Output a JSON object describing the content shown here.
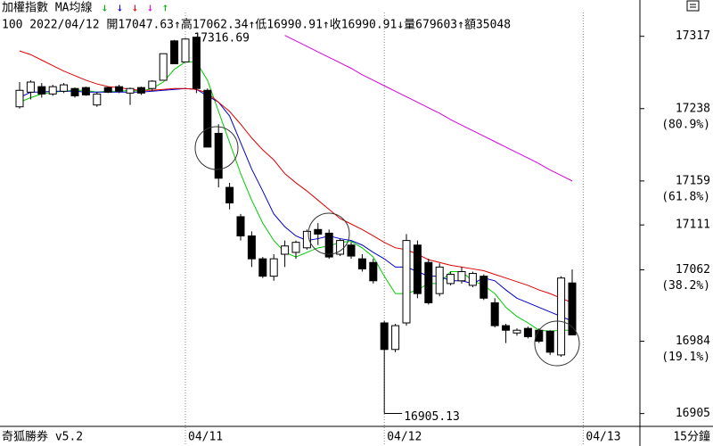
{
  "chart_data": {
    "type": "candlestick",
    "title": "加權指數 MA均線",
    "arrows": [
      {
        "text": "↓",
        "color": "#00b000"
      },
      {
        "text": "↓",
        "color": "#0000d0"
      },
      {
        "text": "↓",
        "color": "#e00000"
      },
      {
        "text": "↓",
        "color": "#e000e0"
      },
      {
        "text": "↑",
        "color": "#00b000"
      }
    ],
    "info": "100 2022/04/12 開17047.63↑高17062.34↑低16990.91↑收16990.91↓量679603↑額35048",
    "categories": [
      null,
      null,
      null,
      null,
      null,
      null,
      null,
      null,
      null,
      null,
      null,
      null,
      null,
      null,
      null,
      "04/11",
      null,
      null,
      null,
      null,
      null,
      null,
      null,
      null,
      null,
      null,
      null,
      null,
      null,
      null,
      null,
      null,
      null,
      "04/12",
      null,
      null,
      null,
      null,
      null,
      null,
      null,
      null,
      null,
      null,
      null,
      null,
      null,
      null,
      null,
      null,
      null,
      "04/13"
    ],
    "open": [
      17240,
      17256,
      17262,
      17254,
      17257,
      17260,
      17261,
      17242,
      17261,
      17262,
      17255,
      17261,
      17260,
      17269,
      17312,
      17289,
      17316,
      17258,
      17211,
      17152,
      17120,
      17099,
      17074,
      17055,
      17079,
      17081,
      17086,
      17106,
      17102,
      17079,
      17089,
      17074,
      17070,
      17004,
      16975,
      17004,
      17089,
      17070,
      17036,
      17047,
      17050,
      17045,
      17055,
      17026,
      17001,
      16993,
      16998,
      16996,
      16995,
      16969,
      17047.63,
      null
    ],
    "high": [
      17267,
      17269,
      17266,
      17264,
      17266,
      17261,
      17262,
      17256,
      17262,
      17264,
      17261,
      17262,
      17269,
      17298,
      17313,
      17315,
      17316.69,
      17260,
      17221,
      17157,
      17123,
      17104,
      17076,
      17079,
      17094,
      17094,
      17106,
      17113,
      17106,
      17096,
      17092,
      17079,
      17074,
      17006,
      17003,
      17101,
      17094,
      17074,
      17069,
      17060,
      17065,
      17060,
      17057,
      17031,
      17003,
      16998,
      17000,
      16998,
      16996,
      17055,
      17062.34,
      null
    ],
    "low": [
      17238,
      17248,
      17250,
      17252,
      17255,
      17250,
      17252,
      17240,
      17255,
      17255,
      17242,
      17253,
      17257,
      17269,
      17287,
      17289,
      17255,
      17196,
      17152,
      17128,
      17094,
      17065,
      17053,
      17050,
      17065,
      17074,
      17084,
      17089,
      17074,
      17077,
      17074,
      17060,
      17047,
      16905.13,
      16972,
      17001,
      17031,
      17024,
      17033,
      17045,
      17047,
      17043,
      17029,
      16999,
      16982,
      16990,
      16987,
      16982,
      16969,
      16967,
      16990.91,
      null
    ],
    "close": [
      17258,
      17267,
      17254,
      17262,
      17264,
      17252,
      17253,
      17254,
      17256,
      17257,
      17260,
      17255,
      17268,
      17298,
      17287,
      17314,
      17260,
      17196,
      17162,
      17135,
      17099,
      17074,
      17055,
      17074,
      17088,
      17092,
      17104,
      17101,
      17076,
      17094,
      17077,
      17063,
      17050,
      16975,
      17001,
      17094,
      17036,
      17026,
      17065,
      17057,
      17060,
      17058,
      17031,
      17001,
      16996,
      16996,
      16989,
      16984,
      16972,
      17053,
      16990.91,
      null
    ],
    "series": [
      {
        "color": "#00cc00",
        "values": [
          17245,
          17250,
          17254,
          17256,
          17257,
          17258,
          17258,
          17256,
          17257,
          17257,
          17258,
          17257,
          17260,
          17267,
          17281,
          17289,
          17289,
          17269,
          17235,
          17201,
          17167,
          17138,
          17113,
          17094,
          17081,
          17076,
          17081,
          17086,
          17088,
          17092,
          17093,
          17086,
          17076,
          17055,
          17036,
          17036,
          17040,
          17047,
          17047,
          17060,
          17060,
          17050,
          17045,
          17036,
          17021,
          17011,
          17004,
          16996,
          16995,
          16996,
          16996,
          null
        ]
      },
      {
        "color": "#0000cc",
        "values": [
          17250,
          17256,
          17256,
          17257,
          17257,
          17257,
          17256,
          17256,
          17256,
          17256,
          17256,
          17256,
          17257,
          17258,
          17259,
          17260,
          17259,
          17252,
          17245,
          17230,
          17201,
          17172,
          17148,
          17123,
          17109,
          17099,
          17094,
          17096,
          17099,
          17096,
          17094,
          17089,
          17081,
          17074,
          17065,
          17065,
          17060,
          17055,
          17055,
          17050,
          17050,
          17047,
          17053,
          17050,
          17040,
          17031,
          17026,
          17021,
          17016,
          17011,
          17006,
          null
        ]
      },
      {
        "color": "#dd0000",
        "values": [
          17301,
          17297,
          17291,
          17285,
          17279,
          17274,
          17269,
          17265,
          17262,
          17261,
          17259,
          17258,
          17258,
          17259,
          17260,
          17260,
          17259,
          17255,
          17245,
          17235,
          17221,
          17206,
          17193,
          17182,
          17167,
          17157,
          17148,
          17138,
          17128,
          17118,
          17112,
          17106,
          17099,
          17092,
          17086,
          17084,
          17079,
          17073,
          17070,
          17067,
          17065,
          17063,
          17061,
          17057,
          17053,
          17049,
          17045,
          17040,
          17036,
          17031,
          17026,
          null
        ]
      },
      {
        "color": "#dd00dd",
        "values": [
          null,
          null,
          null,
          null,
          null,
          null,
          null,
          null,
          null,
          null,
          null,
          null,
          null,
          null,
          null,
          null,
          null,
          null,
          null,
          null,
          null,
          null,
          null,
          null,
          17318,
          17312,
          17306,
          17300,
          17294,
          17288,
          17282,
          17275,
          17269,
          17263,
          17257,
          17251,
          17245,
          17239,
          17233,
          17226,
          17220,
          17214,
          17208,
          17202,
          17196,
          17190,
          17184,
          17178,
          17171,
          17165,
          17159,
          null
        ]
      }
    ],
    "annotations": [
      {
        "text": "17316.69",
        "value": 17316.69
      },
      {
        "text": "16905.13",
        "value": 16905.13
      }
    ],
    "ylim": [
      16891,
      17343
    ],
    "yticks": [
      17317,
      17238,
      17159,
      17111,
      17062,
      16984,
      16905
    ],
    "ytick_notes": [
      {
        "value": 17238,
        "label": "(80.9%)"
      },
      {
        "value": 17159,
        "label": "(61.8%)"
      },
      {
        "value": 17062,
        "label": "(38.2%)"
      },
      {
        "value": 16984,
        "label": "(19.1%)"
      }
    ],
    "footer_left": "奇狐勝券 v5.2",
    "footer_right": "15分鐘"
  }
}
